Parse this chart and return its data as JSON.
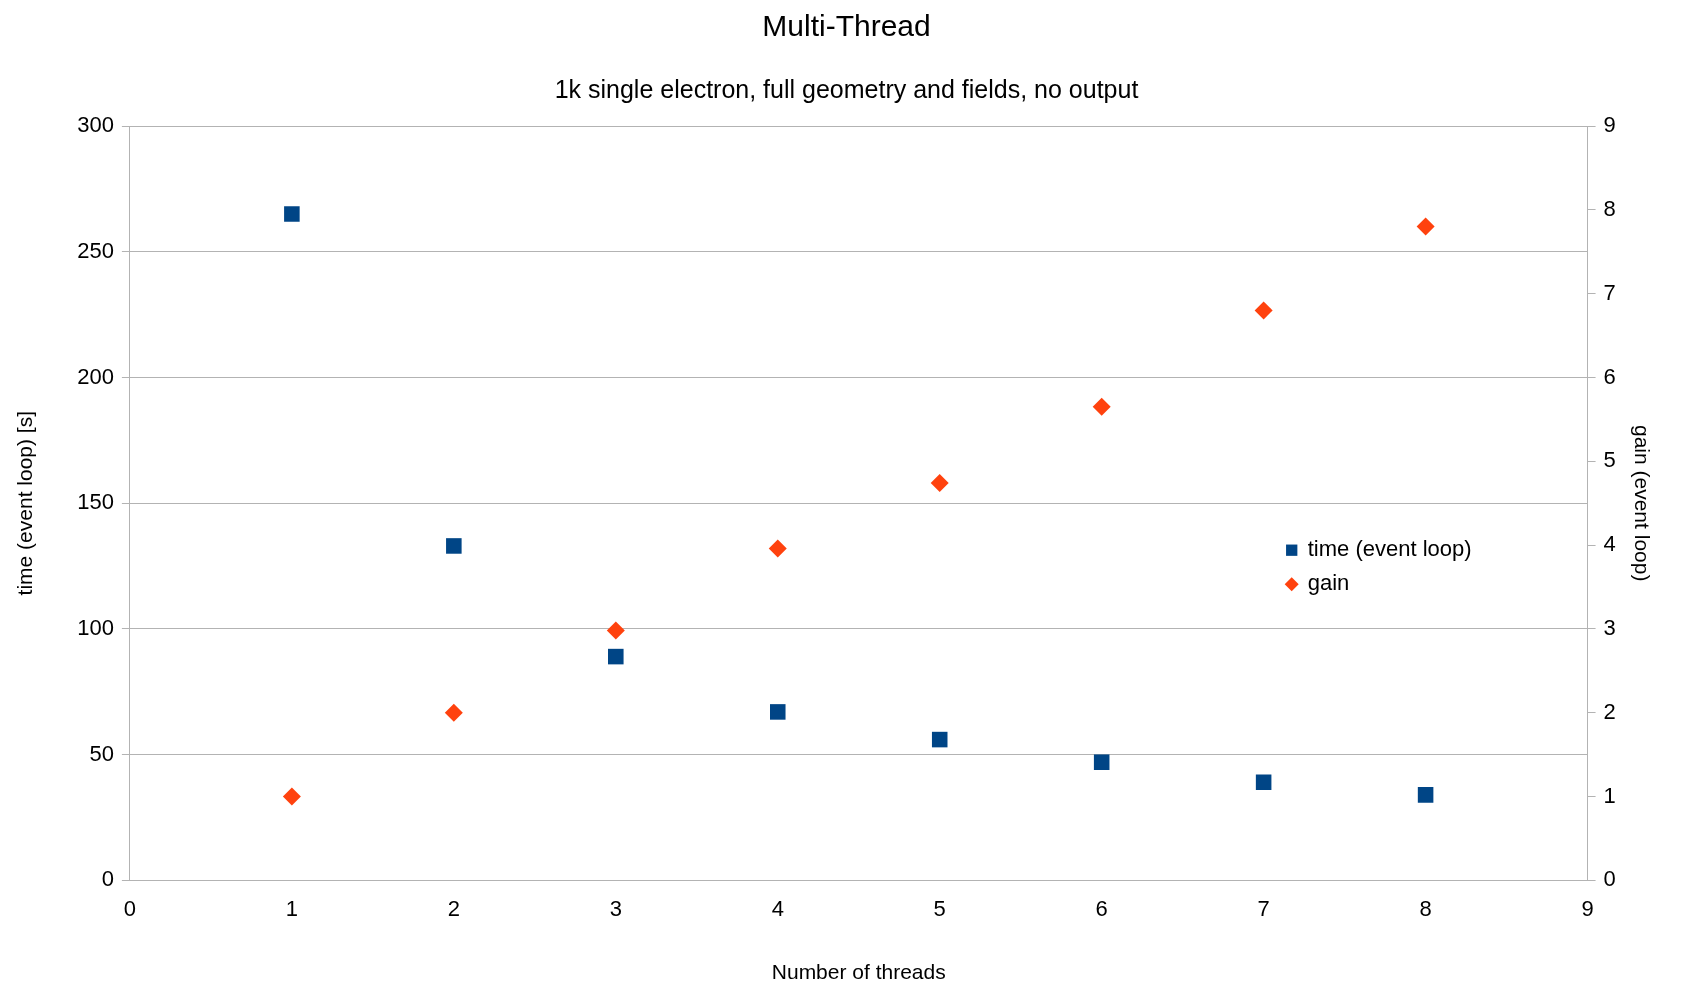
{
  "chart_data": {
    "type": "scatter",
    "title": "Multi-Thread",
    "subtitle": "1k single electron, full geometry and fields, no output",
    "xlabel": "Number of threads",
    "ylabel": "time (event loop) [s]",
    "y2label": "gain (event loop)",
    "x": [
      1,
      2,
      3,
      4,
      5,
      6,
      7,
      8
    ],
    "series": [
      {
        "name": "time (event loop)",
        "color": "#004586",
        "marker": "square",
        "values": [
          265,
          133,
          89,
          67,
          56,
          47,
          39,
          34
        ]
      },
      {
        "name": "gain",
        "color": "#ff420e",
        "marker": "diamond",
        "axis": "y2",
        "values": [
          1.0,
          2.0,
          2.98,
          3.96,
          4.74,
          5.65,
          6.8,
          7.8
        ]
      }
    ],
    "xlim": [
      0,
      9
    ],
    "xticks": [
      0,
      1,
      2,
      3,
      4,
      5,
      6,
      7,
      8,
      9
    ],
    "ylim": [
      0,
      300
    ],
    "yticks": [
      0,
      50,
      100,
      150,
      200,
      250,
      300
    ],
    "y2lim": [
      0,
      9
    ],
    "y2ticks": [
      0,
      1,
      2,
      3,
      4,
      5,
      6,
      7,
      8,
      9
    ],
    "grid": "y",
    "legend": "right"
  }
}
